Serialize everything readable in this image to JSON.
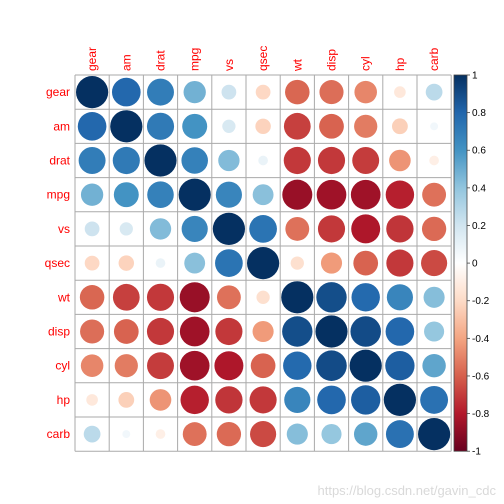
{
  "chart_data": {
    "type": "heatmap",
    "method": "circle",
    "variables": [
      "gear",
      "am",
      "drat",
      "mpg",
      "vs",
      "qsec",
      "wt",
      "disp",
      "cyl",
      "hp",
      "carb"
    ],
    "colorbar": {
      "ticks": [
        "1",
        "0.8",
        "0.6",
        "0.4",
        "0.2",
        "0",
        "-0.2",
        "-0.4",
        "-0.6",
        "-0.8",
        "-1"
      ],
      "min": -1,
      "max": 1,
      "palette": [
        "#67001f",
        "#b2182b",
        "#d6604d",
        "#f4a582",
        "#fddbc7",
        "#ffffff",
        "#d1e5f0",
        "#92c5de",
        "#4393c3",
        "#2166ac",
        "#053061"
      ]
    },
    "matrix": [
      [
        1.0,
        0.79,
        0.7,
        0.48,
        0.21,
        -0.21,
        -0.58,
        -0.56,
        -0.49,
        -0.13,
        0.27
      ],
      [
        0.79,
        1.0,
        0.71,
        0.6,
        0.17,
        -0.23,
        -0.69,
        -0.59,
        -0.52,
        -0.24,
        0.06
      ],
      [
        0.7,
        0.71,
        1.0,
        0.68,
        0.44,
        0.09,
        -0.71,
        -0.71,
        -0.7,
        -0.45,
        -0.09
      ],
      [
        0.48,
        0.6,
        0.68,
        1.0,
        0.66,
        0.42,
        -0.87,
        -0.85,
        -0.85,
        -0.78,
        -0.55
      ],
      [
        0.21,
        0.17,
        0.44,
        0.66,
        1.0,
        0.74,
        -0.55,
        -0.71,
        -0.81,
        -0.72,
        -0.57
      ],
      [
        -0.21,
        -0.23,
        0.09,
        0.42,
        0.74,
        1.0,
        -0.17,
        -0.43,
        -0.59,
        -0.71,
        -0.66
      ],
      [
        -0.58,
        -0.69,
        -0.71,
        -0.87,
        -0.55,
        -0.17,
        1.0,
        0.89,
        0.78,
        0.66,
        0.43
      ],
      [
        -0.56,
        -0.59,
        -0.71,
        -0.85,
        -0.71,
        -0.43,
        0.89,
        1.0,
        0.9,
        0.79,
        0.39
      ],
      [
        -0.49,
        -0.52,
        -0.7,
        -0.85,
        -0.81,
        -0.59,
        0.78,
        0.9,
        1.0,
        0.83,
        0.53
      ],
      [
        -0.13,
        -0.24,
        -0.45,
        -0.78,
        -0.72,
        -0.71,
        0.66,
        0.79,
        0.83,
        1.0,
        0.75
      ],
      [
        0.27,
        0.06,
        -0.09,
        -0.55,
        -0.57,
        -0.66,
        0.43,
        0.39,
        0.53,
        0.75,
        1.0
      ]
    ],
    "label_color": "#ff0000",
    "grid": true
  },
  "watermark": "https://blog.csdn.net/gavin_cdc"
}
